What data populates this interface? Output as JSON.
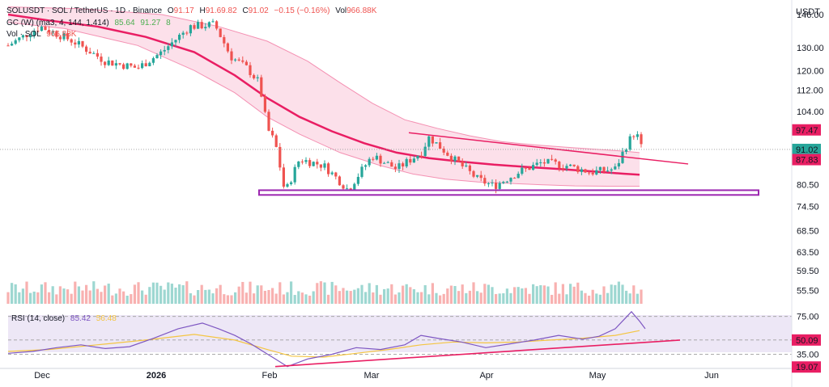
{
  "colors": {
    "up": "#26a69a",
    "down": "#ef5350",
    "band_line": "#e91e63",
    "band_fill": "#f8bbd0",
    "support_box": "#9c27b0",
    "rsi_line": "#7e57c2",
    "rsi_ma": "#f4c542",
    "rsi_bg": "#ede7f6"
  },
  "header": {
    "symbol": "SOLUSDT · SOL / TetherUS · 1D · Binance",
    "o_label": "O",
    "o_value": "91.17",
    "h_label": "H",
    "h_value": "91.69.82",
    "c_label": "C",
    "c_value": "91.02",
    "change": "−0.15 (−0.16%)",
    "vol_label": "Vol",
    "vol_value": "966.88K",
    "gc_line": "GC (W) (ma3, 4, 144, 1.414)",
    "gc_v1": "85.64",
    "gc_v2": "91.27",
    "gc_v3": "8",
    "vol_line": "Vol · SOL",
    "vol_line_value": "966.88K"
  },
  "rsi_legend": {
    "label": "RSI (14, close)",
    "value": "85.42",
    "ma_value": "56.48"
  },
  "chart_data": {
    "type": "candlestick",
    "currency": "USDT",
    "y_scale": "log",
    "ylim": [
      53,
      146
    ],
    "y_ticks": [
      "146.00",
      "130.00",
      "120.00",
      "112.00",
      "104.00",
      "80.50",
      "74.50",
      "68.50",
      "63.50",
      "59.50",
      "55.50"
    ],
    "x_ticks": [
      "Dec",
      "2026",
      "Feb",
      "Mar",
      "Apr",
      "May",
      "Jun"
    ],
    "price_badges": [
      {
        "value": "97.47",
        "style": "red"
      },
      {
        "value": "91.02",
        "style": "green"
      },
      {
        "value": "87.83",
        "style": "red"
      }
    ],
    "band": {
      "center": [
        [
          10,
          146
        ],
        [
          60,
          143
        ],
        [
          120,
          140
        ],
        [
          180,
          135
        ],
        [
          240,
          128
        ],
        [
          290,
          118
        ],
        [
          330,
          109
        ],
        [
          370,
          102
        ],
        [
          410,
          97
        ],
        [
          450,
          93
        ],
        [
          490,
          90
        ],
        [
          530,
          88.3
        ],
        [
          570,
          87.2
        ],
        [
          610,
          86.3
        ],
        [
          650,
          85.6
        ],
        [
          690,
          85
        ],
        [
          730,
          84.3
        ],
        [
          770,
          83.6
        ],
        [
          790,
          83.3
        ]
      ],
      "upper": [
        [
          10,
          150
        ],
        [
          100,
          149
        ],
        [
          200,
          146
        ],
        [
          270,
          140
        ],
        [
          330,
          133
        ],
        [
          380,
          124
        ],
        [
          420,
          115
        ],
        [
          460,
          107
        ],
        [
          500,
          101
        ],
        [
          540,
          98
        ],
        [
          580,
          95.5
        ],
        [
          620,
          93.5
        ],
        [
          660,
          92.5
        ],
        [
          700,
          91.7
        ],
        [
          740,
          91
        ],
        [
          770,
          90.5
        ],
        [
          790,
          90
        ]
      ],
      "lower": [
        [
          10,
          142
        ],
        [
          80,
          139
        ],
        [
          170,
          131
        ],
        [
          240,
          120
        ],
        [
          290,
          111
        ],
        [
          330,
          102
        ],
        [
          370,
          96
        ],
        [
          420,
          90
        ],
        [
          470,
          86
        ],
        [
          510,
          83.5
        ],
        [
          550,
          82
        ],
        [
          590,
          81.2
        ],
        [
          630,
          80.8
        ],
        [
          670,
          80.4
        ],
        [
          710,
          80.1
        ],
        [
          750,
          80
        ],
        [
          790,
          80
        ]
      ]
    },
    "trendline": {
      "from": [
        505,
        96.5
      ],
      "to": [
        850,
        86.5
      ]
    },
    "support_zone": {
      "low": 77.6,
      "high": 78.9,
      "x_from": 320,
      "x_to": 937
    },
    "rsi": {
      "ylim": [
        20,
        85
      ],
      "levels": [
        {
          "value": 75,
          "label": "75.00"
        },
        {
          "value": 50.09,
          "label": "50.09"
        },
        {
          "value": 35,
          "label": "35.00"
        }
      ],
      "badges": [
        {
          "value": "50.09"
        },
        {
          "value": "19.07"
        }
      ],
      "line": [
        [
          10,
          36
        ],
        [
          40,
          38
        ],
        [
          70,
          42
        ],
        [
          100,
          45
        ],
        [
          130,
          41
        ],
        [
          160,
          43
        ],
        [
          190,
          52
        ],
        [
          220,
          62
        ],
        [
          250,
          68
        ],
        [
          270,
          62
        ],
        [
          290,
          55
        ],
        [
          310,
          46
        ],
        [
          325,
          38
        ],
        [
          340,
          30
        ],
        [
          355,
          22
        ],
        [
          380,
          30
        ],
        [
          410,
          35
        ],
        [
          440,
          42
        ],
        [
          470,
          40
        ],
        [
          500,
          45
        ],
        [
          520,
          55
        ],
        [
          540,
          52
        ],
        [
          570,
          48
        ],
        [
          600,
          42
        ],
        [
          630,
          46
        ],
        [
          660,
          50
        ],
        [
          690,
          55
        ],
        [
          720,
          51
        ],
        [
          740,
          54
        ],
        [
          760,
          62
        ],
        [
          780,
          80
        ],
        [
          790,
          70
        ],
        [
          797,
          62
        ]
      ],
      "ma": [
        [
          10,
          38
        ],
        [
          60,
          40
        ],
        [
          120,
          45
        ],
        [
          180,
          50
        ],
        [
          240,
          56
        ],
        [
          290,
          50
        ],
        [
          330,
          40
        ],
        [
          360,
          33
        ],
        [
          400,
          32
        ],
        [
          440,
          36
        ],
        [
          480,
          40
        ],
        [
          520,
          45
        ],
        [
          560,
          48
        ],
        [
          600,
          47
        ],
        [
          640,
          48
        ],
        [
          680,
          50
        ],
        [
          720,
          52
        ],
        [
          760,
          55
        ],
        [
          790,
          60
        ]
      ],
      "trendline": {
        "from": [
          340,
          22
        ],
        "to": [
          840,
          50
        ]
      }
    }
  }
}
